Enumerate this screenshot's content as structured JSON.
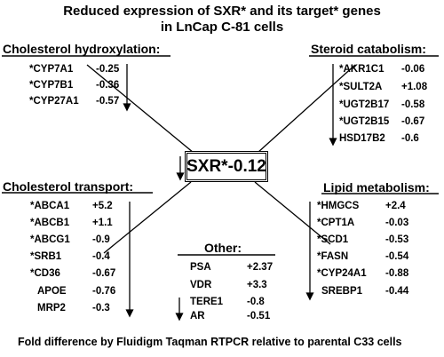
{
  "title_line1": "Reduced expression of SXR* and its target* genes",
  "title_line2": "in LnCap C-81 cells",
  "center": {
    "label": "SXR*-0.12"
  },
  "footer": "Fold difference by Fluidigm Taqman RTPCR relative to parental C33 cells",
  "groups": [
    {
      "id": "chol-hydrox",
      "title": "Cholesterol hydroxylation:",
      "genes": [
        {
          "gene": "*CYP7A1",
          "value": "-0.25"
        },
        {
          "gene": "*CYP7B1",
          "value": "-0.36"
        },
        {
          "gene": "*CYP27A1",
          "value": "-0.57"
        }
      ]
    },
    {
      "id": "steroid-cat",
      "title": "Steroid catabolism:",
      "genes": [
        {
          "gene": "*AKR1C1",
          "value": "-0.06"
        },
        {
          "gene": "*SULT2A",
          "value": "+1.08"
        },
        {
          "gene": "*UGT2B17",
          "value": "-0.58"
        },
        {
          "gene": "*UGT2B15",
          "value": "-0.67"
        },
        {
          "gene": "HSD17B2",
          "value": "-0.6"
        }
      ]
    },
    {
      "id": "chol-transport",
      "title": "Cholesterol transport:",
      "genes": [
        {
          "gene": "*ABCA1",
          "value": "+5.2"
        },
        {
          "gene": "*ABCB1",
          "value": "+1.1"
        },
        {
          "gene": "*ABCG1",
          "value": "-0.9"
        },
        {
          "gene": "*SRB1",
          "value": "-0.4"
        },
        {
          "gene": "*CD36",
          "value": "-0.67"
        },
        {
          "gene": "APOE",
          "value": "-0.76"
        },
        {
          "gene": "MRP2",
          "value": "-0.3"
        }
      ]
    },
    {
      "id": "lipid-met",
      "title": "Lipid metabolism:",
      "genes": [
        {
          "gene": "*HMGCS",
          "value": "+2.4"
        },
        {
          "gene": "*CPT1A",
          "value": "-0.03"
        },
        {
          "gene": "*SCD1",
          "value": "-0.53"
        },
        {
          "gene": "*FASN",
          "value": "-0.54"
        },
        {
          "gene": "*CYP24A1",
          "value": "-0.88"
        },
        {
          "gene": "SREBP1",
          "value": "-0.44"
        }
      ]
    },
    {
      "id": "other",
      "title": "Other:",
      "genes": [
        {
          "gene": "PSA",
          "value": "+2.37"
        },
        {
          "gene": "VDR",
          "value": "+3.3"
        },
        {
          "gene": "TERE1",
          "value": "-0.8"
        },
        {
          "gene": "AR",
          "value": "-0.51"
        }
      ]
    }
  ]
}
